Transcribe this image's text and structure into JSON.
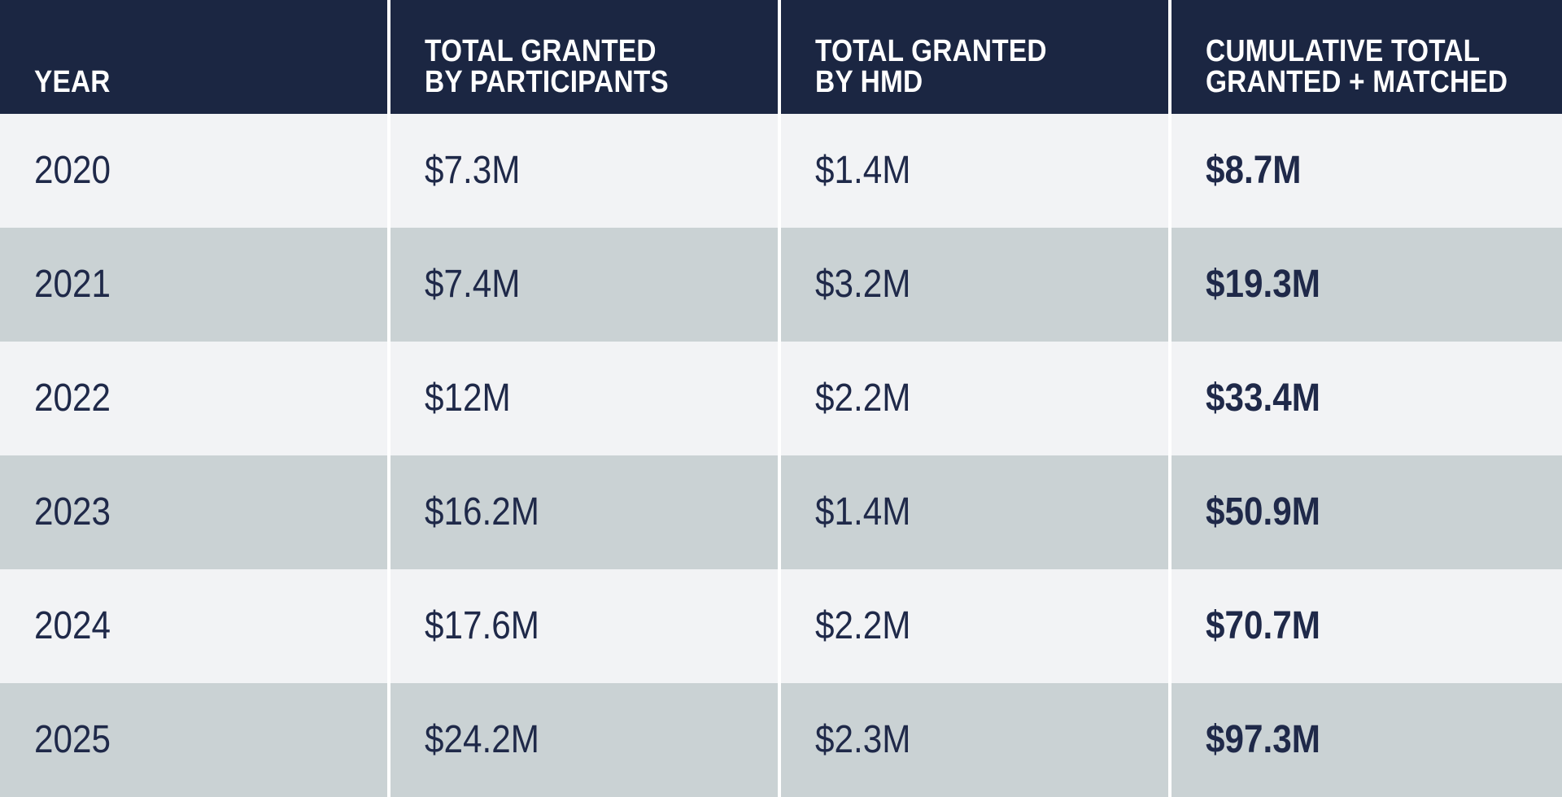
{
  "chart_data": {
    "type": "table",
    "categories": [
      "2020",
      "2021",
      "2022",
      "2023",
      "2024",
      "2025"
    ],
    "series": [
      {
        "name": "Total granted by participants ($M)",
        "values": [
          7.3,
          7.4,
          12,
          16.2,
          17.6,
          24.2
        ]
      },
      {
        "name": "Total granted by HMD ($M)",
        "values": [
          1.4,
          3.2,
          2.2,
          1.4,
          2.2,
          2.3
        ]
      },
      {
        "name": "Cumulative total granted + matched ($M)",
        "values": [
          8.7,
          19.3,
          33.4,
          50.9,
          70.7,
          97.3
        ]
      }
    ],
    "column_headers": [
      "YEAR",
      "TOTAL GRANTED BY PARTICIPANTS",
      "TOTAL GRANTED BY HMD",
      "CUMULATIVE TOTAL GRANTED + MATCHED"
    ]
  },
  "table": {
    "columns": [
      {
        "id": "year",
        "lines": [
          "YEAR"
        ]
      },
      {
        "id": "participants",
        "lines": [
          "TOTAL GRANTED",
          "BY PARTICIPANTS"
        ]
      },
      {
        "id": "hmd",
        "lines": [
          "TOTAL GRANTED",
          "BY HMD"
        ]
      },
      {
        "id": "cumulative",
        "lines": [
          "CUMULATIVE TOTAL",
          "GRANTED + MATCHED"
        ]
      }
    ],
    "rows": [
      {
        "year": "2020",
        "participants": "$7.3M",
        "hmd": "$1.4M",
        "cumulative": "$8.7M"
      },
      {
        "year": "2021",
        "participants": "$7.4M",
        "hmd": "$3.2M",
        "cumulative": "$19.3M"
      },
      {
        "year": "2022",
        "participants": "$12M",
        "hmd": "$2.2M",
        "cumulative": "$33.4M"
      },
      {
        "year": "2023",
        "participants": "$16.2M",
        "hmd": "$1.4M",
        "cumulative": "$50.9M"
      },
      {
        "year": "2024",
        "participants": "$17.6M",
        "hmd": "$2.2M",
        "cumulative": "$70.7M"
      },
      {
        "year": "2025",
        "participants": "$24.2M",
        "hmd": "$2.3M",
        "cumulative": "$97.3M"
      }
    ]
  },
  "colors": {
    "header_bg": "#1b2642",
    "header_text": "#ffffff",
    "row_light": "#f2f3f5",
    "row_dark": "#cad2d4",
    "cell_text": "#1f2949",
    "divider": "#ffffff"
  }
}
